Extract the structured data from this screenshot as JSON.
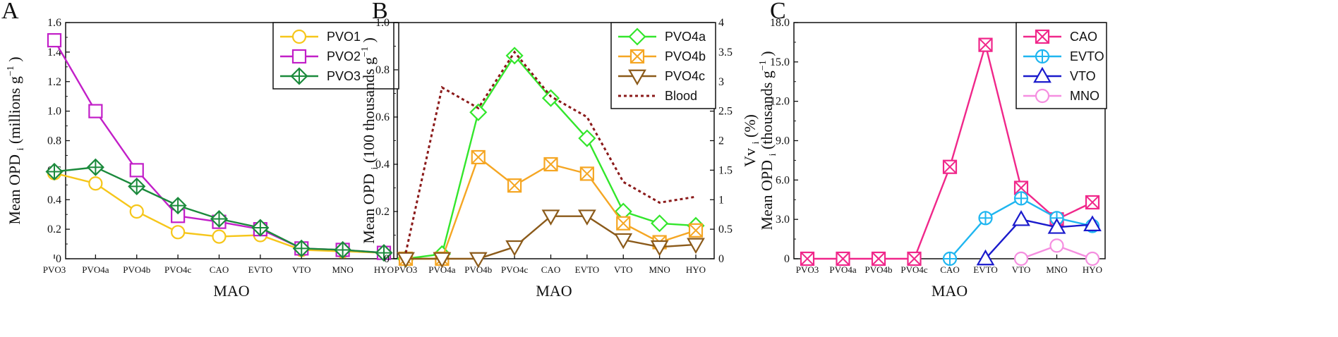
{
  "chart_data": [
    {
      "panel": "A",
      "type": "line",
      "categories": [
        "PVO3",
        "PVO4a",
        "PVO4b",
        "PVO4c",
        "CAO",
        "EVTO",
        "VTO",
        "MNO",
        "HYO"
      ],
      "xlabel": "MAO",
      "ylabel": "Mean OPD",
      "ylabel_sub": "i",
      "ylabel_unit": "(millions g",
      "ylabel_sup": "−1",
      "ylabel_close": ")",
      "ylim": [
        0,
        1.6
      ],
      "yticks": [
        "0",
        "0.2",
        "0.4",
        "0.6",
        "0.8",
        "1.0",
        "1.2",
        "1.4",
        "1.6"
      ],
      "legend_position": "top-right",
      "series": [
        {
          "name": "PVO1",
          "color": "#f6c61a",
          "marker": "circle",
          "values": [
            0.58,
            0.51,
            0.32,
            0.18,
            0.15,
            0.16,
            0.06,
            0.05,
            0.04
          ]
        },
        {
          "name": "PVO2",
          "color": "#c21fc8",
          "marker": "square",
          "values": [
            1.48,
            1.0,
            0.6,
            0.29,
            0.25,
            0.2,
            0.07,
            0.06,
            0.04
          ]
        },
        {
          "name": "PVO3",
          "color": "#1b8a3c",
          "marker": "diamond",
          "values": [
            0.59,
            0.62,
            0.49,
            0.36,
            0.27,
            0.21,
            0.07,
            0.06,
            0.04
          ]
        }
      ]
    },
    {
      "panel": "B",
      "type": "line",
      "categories": [
        "PVO3",
        "PVO4a",
        "PVO4b",
        "PVO4c",
        "CAO",
        "EVTO",
        "VTO",
        "MNO",
        "HYO"
      ],
      "xlabel": "MAO",
      "ylabel": "Mean OPD",
      "ylabel_sub": "i",
      "ylabel_unit": "(100 thousands g",
      "ylabel_sup": "−1",
      "ylabel_close": ")",
      "ylim": [
        0,
        1.0
      ],
      "yticks": [
        "0",
        "0.2",
        "0.4",
        "0.6",
        "0.8",
        "1.0"
      ],
      "y2label": "Vv",
      "y2label_sub": "i",
      "y2label_unit": "(%)",
      "y2lim": [
        0,
        4
      ],
      "y2ticks": [
        "0",
        "0.5",
        "1",
        "1.5",
        "2",
        "2.5",
        "3",
        "3.5",
        "4"
      ],
      "legend_position": "top-right",
      "series": [
        {
          "name": "PVO4a",
          "color": "#33e62c",
          "marker": "diamond",
          "axis": "left",
          "values": [
            0.0,
            0.02,
            0.62,
            0.86,
            0.68,
            0.51,
            0.2,
            0.15,
            0.14
          ]
        },
        {
          "name": "PVO4b",
          "color": "#f5a623",
          "marker": "square-x",
          "axis": "left",
          "values": [
            0.0,
            0.0,
            0.43,
            0.31,
            0.4,
            0.36,
            0.15,
            0.07,
            0.12
          ]
        },
        {
          "name": "PVO4c",
          "color": "#8b5a1a",
          "marker": "triangle-down",
          "axis": "left",
          "values": [
            0.0,
            0.0,
            0.0,
            0.05,
            0.18,
            0.18,
            0.08,
            0.05,
            0.06
          ]
        },
        {
          "name": "Blood",
          "color": "#8b1a1a",
          "marker": "none",
          "dashed": true,
          "axis": "right",
          "values": [
            0.1,
            2.9,
            2.55,
            3.5,
            2.75,
            2.4,
            1.3,
            0.95,
            1.05
          ]
        }
      ]
    },
    {
      "panel": "C",
      "type": "line",
      "categories": [
        "PVO3",
        "PVO4a",
        "PVO4b",
        "PVO4c",
        "CAO",
        "EVTO",
        "VTO",
        "MNO",
        "HYO"
      ],
      "xlabel": "MAO",
      "ylabel": "Mean OPD",
      "ylabel_sub": "i",
      "ylabel_unit": "(thousands g",
      "ylabel_sup": "−1",
      "ylabel_close": ")",
      "ylim": [
        0,
        18
      ],
      "yticks": [
        "0",
        "3.0",
        "6.0",
        "9.0",
        "12.0",
        "15.0",
        "18.0"
      ],
      "legend_position": "top-right",
      "series": [
        {
          "name": "CAO",
          "color": "#f0278a",
          "marker": "square-x",
          "values": [
            0,
            0,
            0,
            0,
            7.0,
            16.3,
            5.4,
            3.0,
            4.3
          ]
        },
        {
          "name": "EVTO",
          "color": "#1fb6f0",
          "marker": "circle-plus",
          "values": [
            null,
            null,
            null,
            null,
            0,
            3.1,
            4.6,
            3.1,
            2.5
          ]
        },
        {
          "name": "VTO",
          "color": "#1a1acc",
          "marker": "triangle",
          "values": [
            null,
            null,
            null,
            null,
            null,
            0,
            3.0,
            2.4,
            2.6
          ]
        },
        {
          "name": "MNO",
          "color": "#f58ee0",
          "marker": "circle",
          "values": [
            null,
            null,
            null,
            null,
            null,
            null,
            0,
            1.0,
            0
          ]
        }
      ]
    }
  ]
}
